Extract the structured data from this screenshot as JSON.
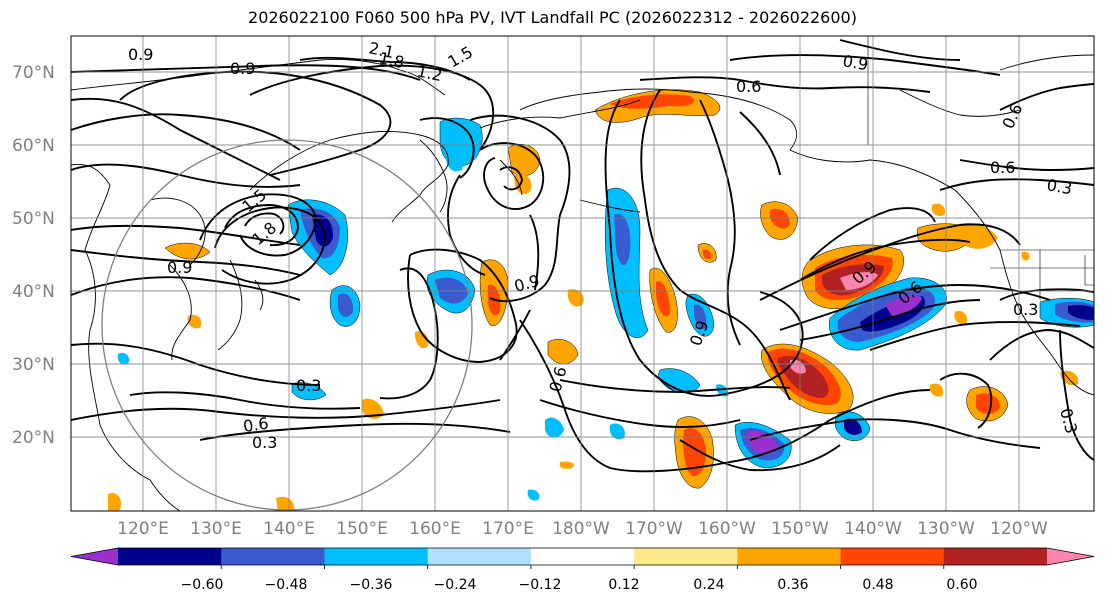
{
  "title": "2026022100 F060 500 hPa PV, IVT Landfall PC (2026022312 - 2026022600)",
  "lat_labels": [
    "70°N",
    "60°N",
    "50°N",
    "40°N",
    "30°N",
    "20°N"
  ],
  "lon_labels": [
    "120°E",
    "130°E",
    "140°E",
    "150°E",
    "160°E",
    "170°E",
    "180°W",
    "170°W",
    "160°W",
    "150°W",
    "140°W",
    "130°W",
    "120°W"
  ],
  "colorbar": {
    "ticks": [
      "−0.60",
      "−0.48",
      "−0.36",
      "−0.24",
      "−0.12",
      "0.12",
      "0.24",
      "0.36",
      "0.48",
      "0.60"
    ],
    "colors": [
      "#9a30d0",
      "#00008c",
      "#3a5ad0",
      "#00bfff",
      "#b0e0ff",
      "#ffffff",
      "#ffe98a",
      "#ffa500",
      "#ff4500",
      "#b22222",
      "#ff85b0"
    ]
  },
  "contour_labels": [
    "0.9",
    "2.1",
    "1.8",
    "1.5",
    "1.2",
    "0.9",
    "0.9",
    "0.6",
    "0.6",
    "0.3",
    "1.5",
    "1.8",
    "0.9",
    "0.9",
    "0.9",
    "0.6",
    "0.3",
    "0.6",
    "0.3",
    "0.9",
    "0.6",
    "0.3",
    "0.3",
    "0.6"
  ]
}
